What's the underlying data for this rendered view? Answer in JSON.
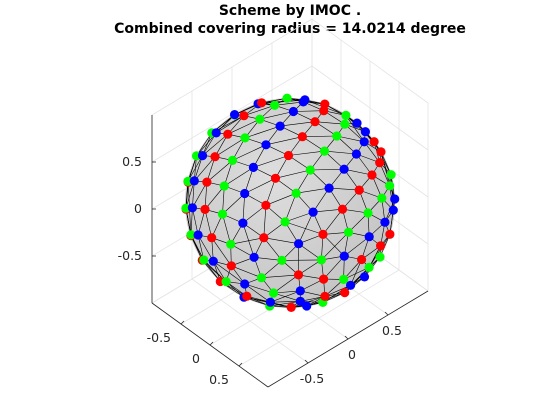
{
  "figure": {
    "title_line1": "Scheme by IMOC .",
    "title_line2": "Combined covering radius = 14.0214 degree"
  },
  "chart_data": {
    "type": "scatter",
    "projection": "3d",
    "title": "Scheme by IMOC .\nCombined covering radius = 14.0214 degree",
    "surface": "unit sphere with triangulated mesh",
    "axes": {
      "x": {
        "range": [
          -1,
          1
        ],
        "ticks": [
          -0.5,
          0,
          0.5
        ],
        "tick_labels": [
          "-0.5",
          "0",
          "0.5"
        ]
      },
      "y": {
        "range": [
          -1,
          1
        ],
        "ticks": [
          -0.5,
          0,
          0.5
        ],
        "tick_labels": [
          "-0.5",
          "0",
          "0.5"
        ]
      },
      "z": {
        "range": [
          -1,
          1
        ],
        "ticks": [
          -0.5,
          0,
          0.5
        ],
        "tick_labels": [
          "-0.5",
          "0",
          "0.5"
        ]
      }
    },
    "grid": true,
    "colors": {
      "sphere": "#d4d4d4",
      "mesh": "#000000",
      "red": "#ff0000",
      "green": "#00ff00",
      "blue": "#0000ff"
    },
    "series": [
      {
        "color": "red",
        "count": 64
      },
      {
        "color": "green",
        "count": 64
      },
      {
        "color": "blue",
        "count": 64
      }
    ]
  }
}
